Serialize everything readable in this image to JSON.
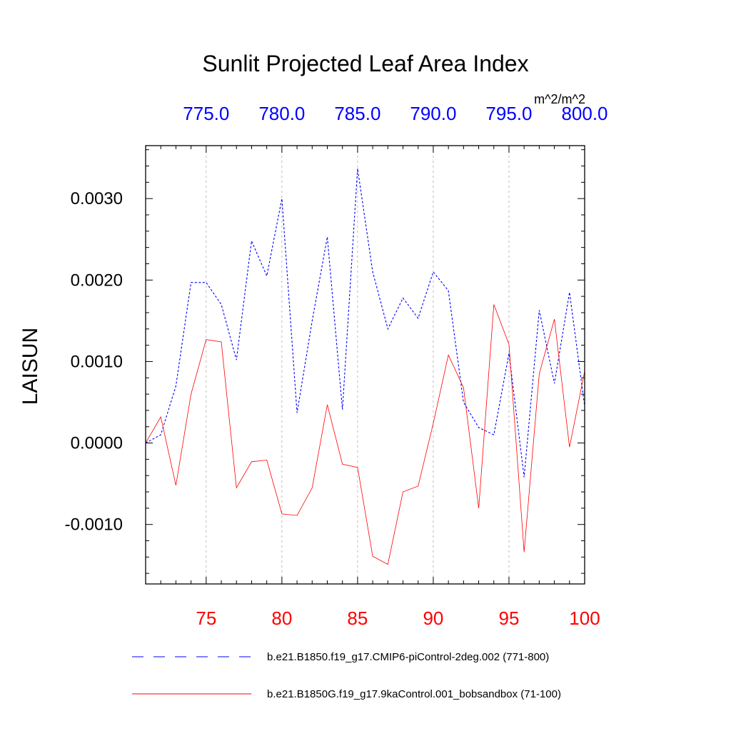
{
  "chart_data": {
    "type": "line",
    "title": "Sunlit Projected Leaf Area Index",
    "units": "m^2/m^2",
    "ylabel": "LAISUN",
    "bottom_axis": {
      "range": [
        71,
        100
      ],
      "ticks": [
        "75",
        "80",
        "85",
        "90",
        "95",
        "100"
      ],
      "tick_values": [
        75,
        80,
        85,
        90,
        95,
        100
      ],
      "color": "#ff0000"
    },
    "top_axis": {
      "range": [
        771,
        800
      ],
      "ticks": [
        "775.0",
        "780.0",
        "785.0",
        "790.0",
        "795.0",
        "800.0"
      ],
      "tick_values": [
        775,
        780,
        785,
        790,
        795,
        800
      ],
      "color": "#0000ff"
    },
    "y_axis": {
      "range": [
        -0.00173,
        0.00365
      ],
      "ticks": [
        "-0.0010",
        "0.0000",
        "0.0010",
        "0.0020",
        "0.0030"
      ],
      "tick_values": [
        -0.001,
        0.0,
        0.001,
        0.002,
        0.003
      ]
    },
    "grid": "vertical dashed at major x ticks",
    "legend_placement": "below plot",
    "series": [
      {
        "name": "b.e21.B1850.f19_g17.CMIP6-piControl-2deg.002 (771-800)",
        "color": "#0000ff",
        "dash": "dashed",
        "x_axis": "top",
        "x": [
          771,
          772,
          773,
          774,
          775,
          776,
          777,
          778,
          779,
          780,
          781,
          782,
          783,
          784,
          785,
          786,
          787,
          788,
          789,
          790,
          791,
          792,
          793,
          794,
          795,
          796,
          797,
          798,
          799,
          800
        ],
        "values": [
          0.0,
          0.0001,
          0.0007,
          0.00197,
          0.00197,
          0.0017,
          0.00102,
          0.00248,
          0.00205,
          0.003,
          0.00037,
          0.0015,
          0.00253,
          0.00041,
          0.00337,
          0.0021,
          0.0014,
          0.00178,
          0.00153,
          0.0021,
          0.00187,
          0.0005,
          0.00019,
          0.0001,
          0.0011,
          -0.00042,
          0.00163,
          0.00073,
          0.00185,
          0.00045
        ]
      },
      {
        "name": "b.e21.B1850G.f19_g17.9kaControl.001_bobsandbox (71-100)",
        "color": "#ff0000",
        "dash": "solid",
        "x_axis": "bottom",
        "x": [
          71,
          72,
          73,
          74,
          75,
          76,
          77,
          78,
          79,
          80,
          81,
          82,
          83,
          84,
          85,
          86,
          87,
          88,
          89,
          90,
          91,
          92,
          93,
          94,
          95,
          96,
          97,
          98,
          99,
          100
        ],
        "values": [
          0.0,
          0.00032,
          -0.00052,
          0.0006,
          0.00127,
          0.00124,
          -0.00055,
          -0.00023,
          -0.00021,
          -0.00087,
          -0.00089,
          -0.00055,
          0.00047,
          -0.00026,
          -0.0003,
          -0.00139,
          -0.00149,
          -0.0006,
          -0.00053,
          0.00024,
          0.00108,
          0.00068,
          -0.0008,
          0.0017,
          0.00121,
          -0.00134,
          0.00085,
          0.00152,
          -5e-05,
          0.00088
        ]
      }
    ]
  }
}
